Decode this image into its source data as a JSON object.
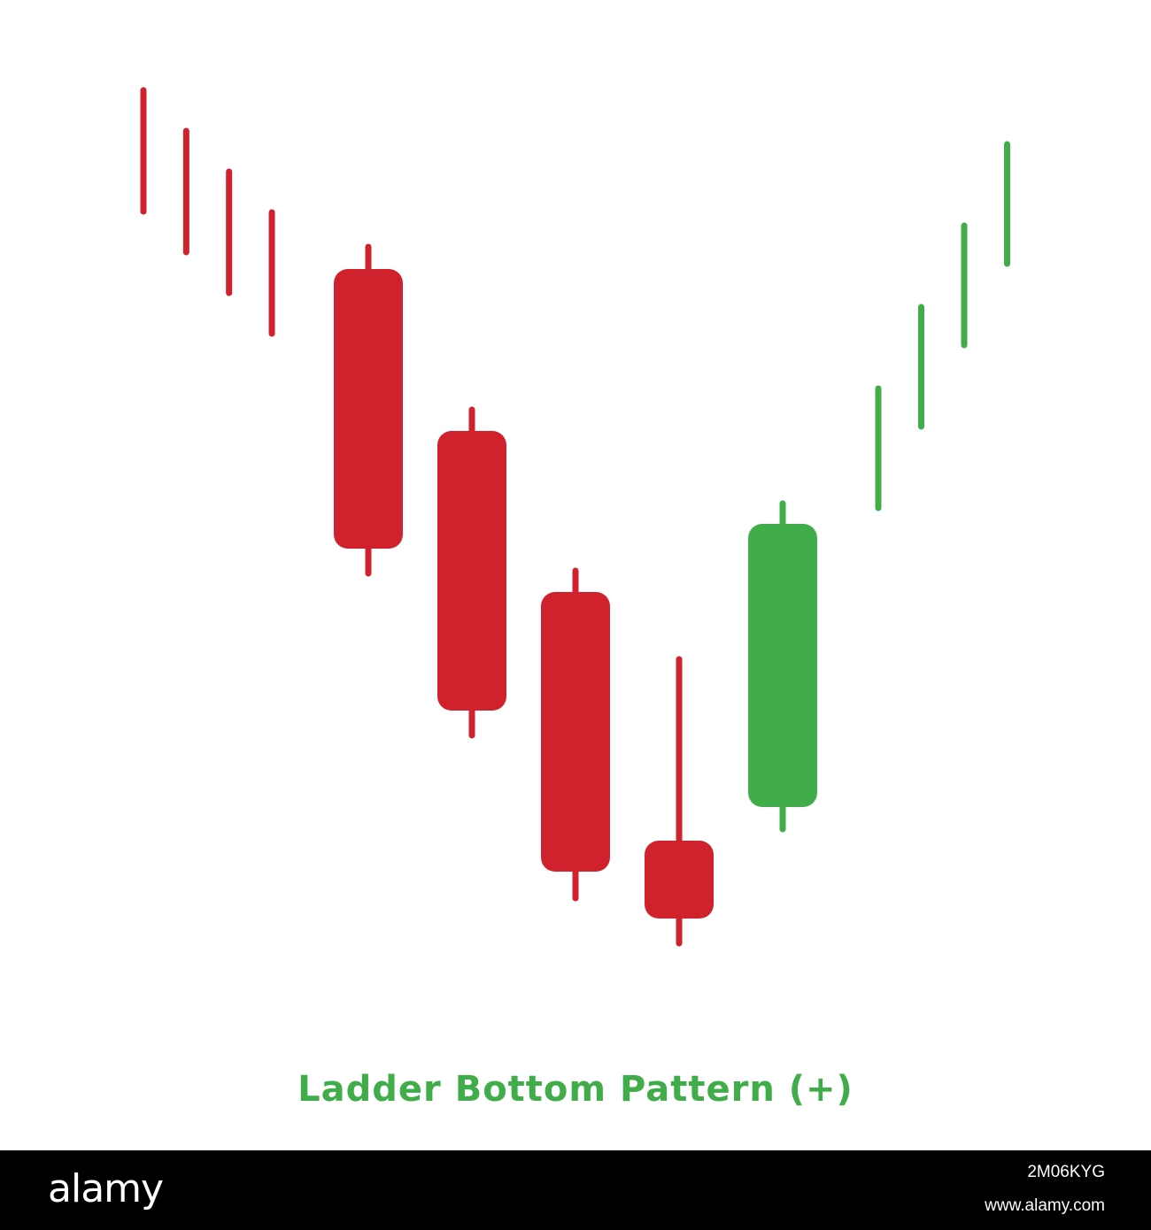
{
  "colors": {
    "bearish": "#d0222c",
    "bullish": "#40ad4a",
    "background": "#ffffff",
    "footer": "#000000"
  },
  "chart_data": {
    "type": "candlestick",
    "title": "Ladder Bottom Pattern (+)",
    "axes_visible": false,
    "grid": false,
    "candles": [
      {
        "type": "line",
        "direction": "bearish",
        "high": 1288,
        "low": 1151
      },
      {
        "type": "line",
        "direction": "bearish",
        "high": 1242,
        "low": 1105
      },
      {
        "type": "line",
        "direction": "bearish",
        "high": 1196,
        "low": 1059
      },
      {
        "type": "line",
        "direction": "bearish",
        "high": 1150,
        "low": 1013
      },
      {
        "type": "candle",
        "direction": "bearish",
        "high": 1111,
        "open": 1086,
        "close": 770,
        "low": 742
      },
      {
        "type": "candle",
        "direction": "bearish",
        "high": 927,
        "open": 903,
        "close": 587,
        "low": 559
      },
      {
        "type": "candle",
        "direction": "bearish",
        "high": 745,
        "open": 721,
        "close": 405,
        "low": 375
      },
      {
        "type": "candle",
        "direction": "bearish",
        "high": 645,
        "open": 440,
        "close": 352,
        "low": 324
      },
      {
        "type": "candle",
        "direction": "bullish",
        "high": 821,
        "open": 478,
        "close": 798,
        "low": 453
      },
      {
        "type": "line",
        "direction": "bullish",
        "high": 951,
        "low": 816
      },
      {
        "type": "line",
        "direction": "bullish",
        "high": 1043,
        "low": 908
      },
      {
        "type": "line",
        "direction": "bullish",
        "high": 1135,
        "low": 1000
      },
      {
        "type": "line",
        "direction": "bullish",
        "high": 1227,
        "low": 1092
      }
    ]
  },
  "footer": {
    "logo": "alamy",
    "image_id": "2M06KYG",
    "site": "www.alamy.com"
  }
}
